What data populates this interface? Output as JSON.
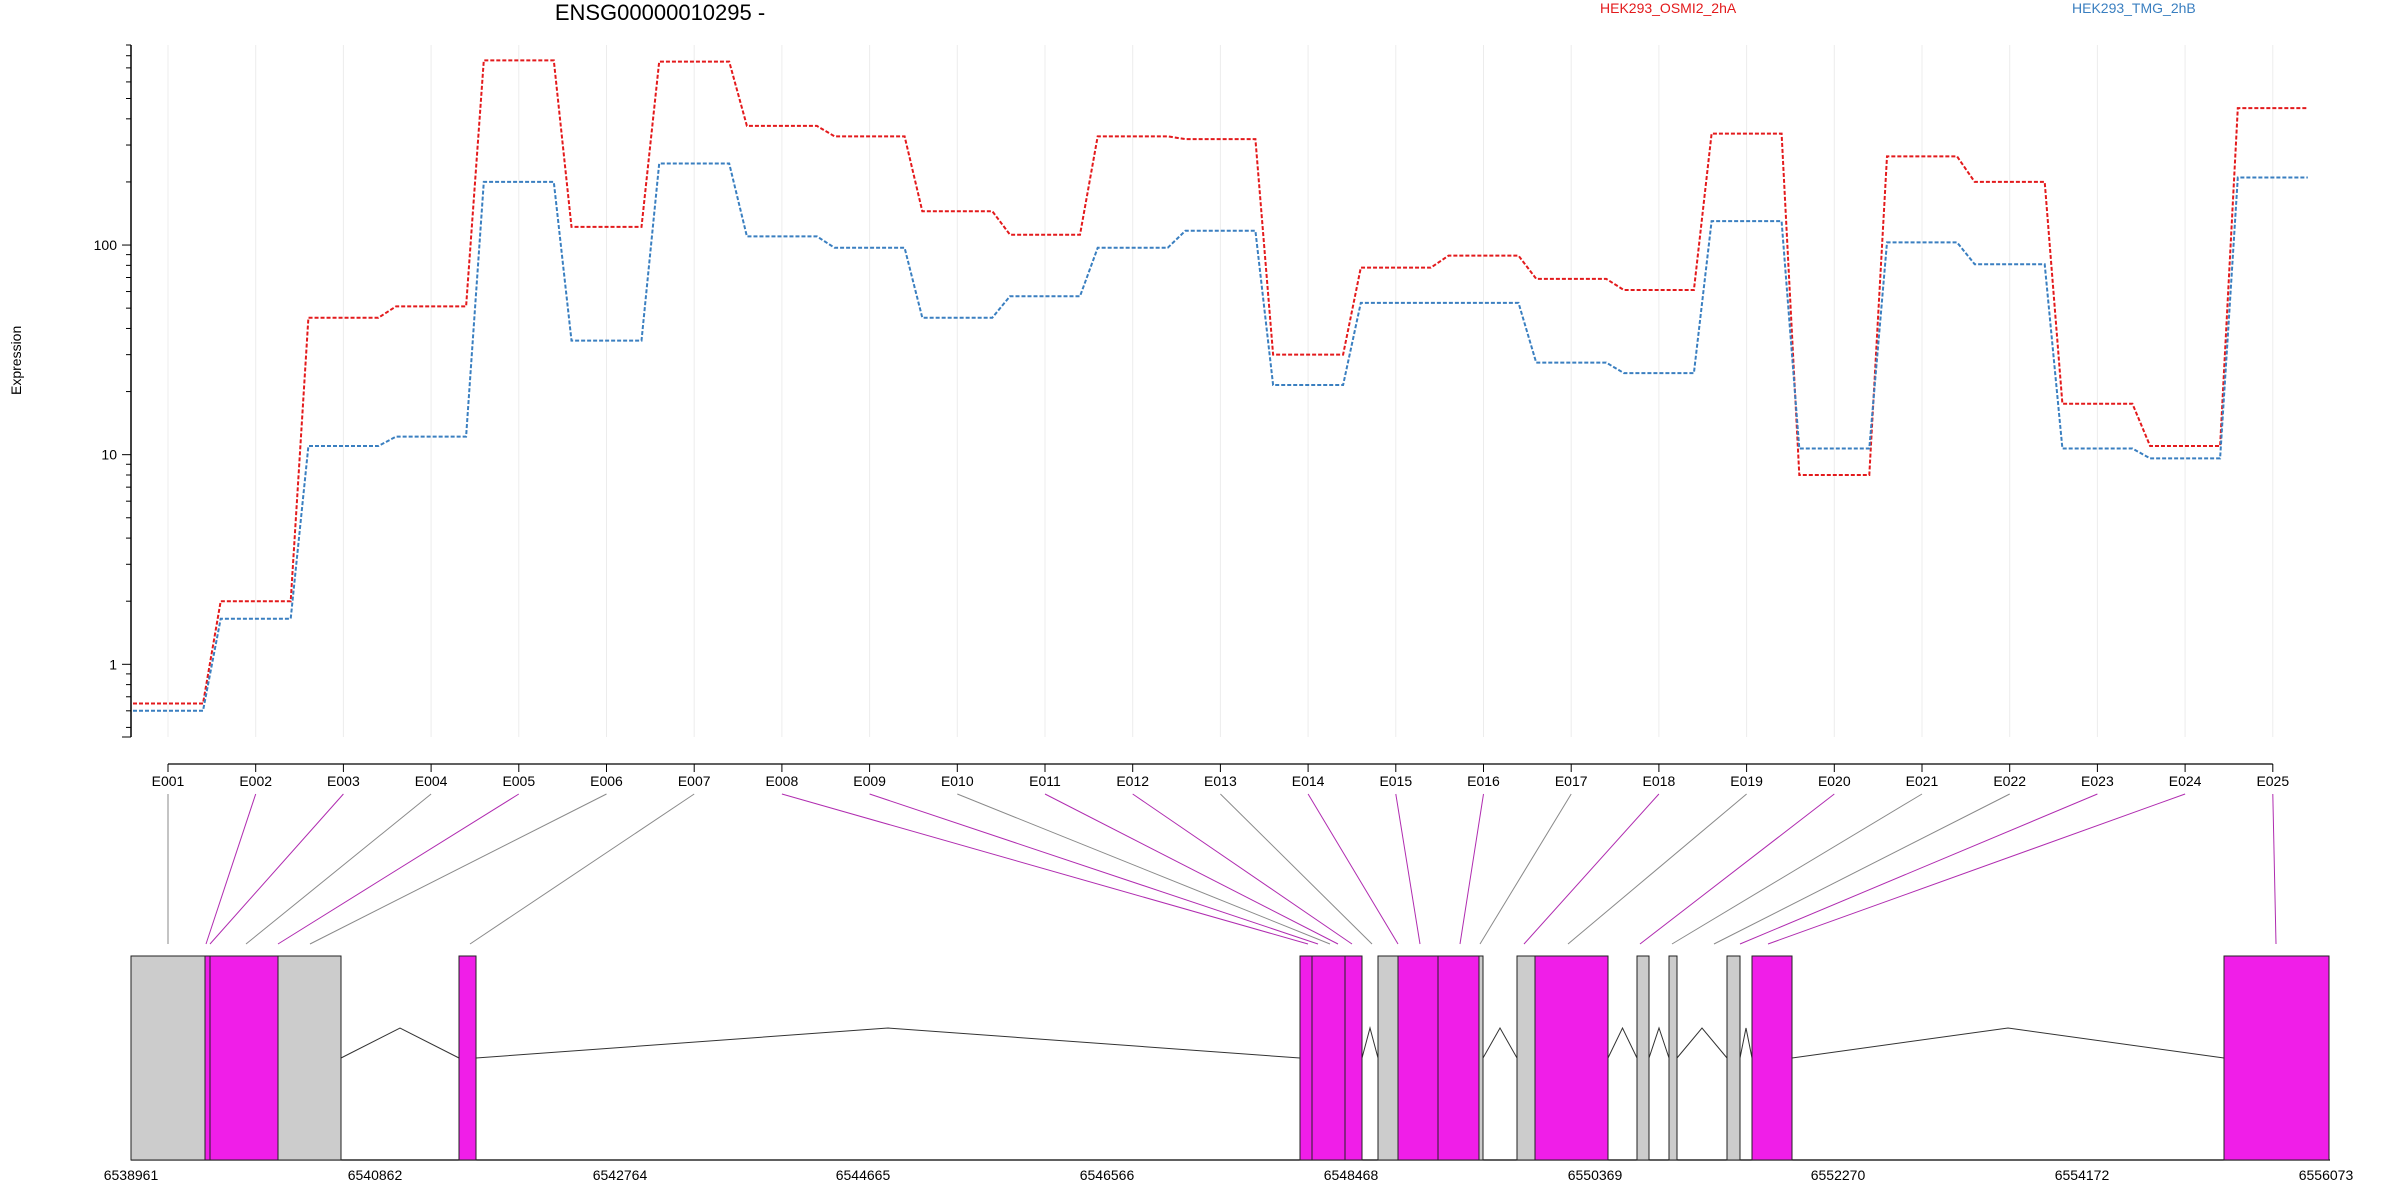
{
  "chart_data": {
    "type": "line",
    "title": "ENSG00000010295 -",
    "ylabel": "Expression",
    "yscale": "log",
    "ylim": [
      0.45,
      900
    ],
    "yticks": [
      1,
      10,
      100
    ],
    "ytick_labels": [
      "1",
      "10",
      "100"
    ],
    "categories": [
      "E001",
      "E002",
      "E003",
      "E004",
      "E005",
      "E006",
      "E007",
      "E008",
      "E009",
      "E010",
      "E011",
      "E012",
      "E013",
      "E014",
      "E015",
      "E016",
      "E017",
      "E018",
      "E019",
      "E020",
      "E021",
      "E022",
      "E023",
      "E024",
      "E025"
    ],
    "series": [
      {
        "name": "HEK293_OSMI2_2hA",
        "color": "#e31a1c",
        "values": [
          0.65,
          2.0,
          45,
          51,
          760,
          122,
          750,
          370,
          330,
          145,
          112,
          330,
          320,
          30,
          78,
          89,
          69,
          61,
          340,
          8.0,
          265,
          200,
          17.5,
          11,
          450
        ]
      },
      {
        "name": "HEK293_TMG_2hB",
        "color": "#3a7fc0",
        "values": [
          0.6,
          1.65,
          11,
          12.2,
          200,
          35,
          245,
          110,
          97,
          45,
          57,
          97,
          117,
          21.5,
          53,
          53,
          27.5,
          24.5,
          130,
          10.7,
          103,
          81,
          10.7,
          9.6,
          210
        ]
      }
    ],
    "genome_axis": {
      "tick_labels": [
        "6538961",
        "6540862",
        "6542764",
        "6544665",
        "6546566",
        "6548468",
        "6550369",
        "6552270",
        "6554172",
        "6556073"
      ]
    },
    "exon_colors": [
      "gray",
      "magenta",
      "magenta",
      "gray",
      "magenta",
      "gray",
      "gray",
      "magenta",
      "magenta",
      "gray",
      "magenta",
      "magenta",
      "gray",
      "magenta",
      "magenta",
      "magenta",
      "gray",
      "magenta",
      "gray",
      "magenta",
      "gray",
      "gray",
      "magenta",
      "magenta",
      "magenta"
    ],
    "colors": {
      "magenta": "#f01ee8",
      "gray": "#cccccc",
      "magenta_line": "#b02cb0",
      "gray_line": "#8a8a8a"
    }
  }
}
